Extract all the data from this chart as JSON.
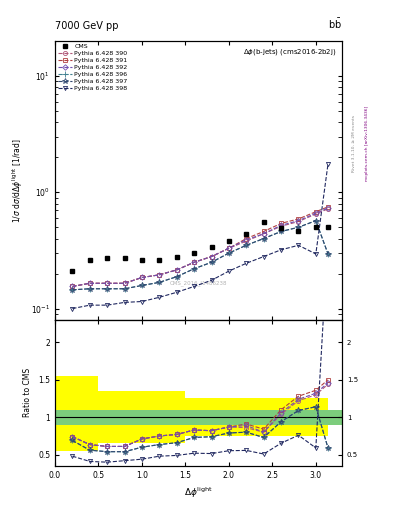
{
  "title_top": "7000 GeV pp",
  "title_right": "b$\\bar{\\mathrm{b}}$",
  "subtitle": "$\\Delta\\phi$(b-jets) (cms2016-2b2j)",
  "watermark": "CMS_2016_I1486238",
  "rivet_label": "Rivet 3.1.10, ≥ 2M events",
  "mcplots_label": "mcplots.cern.ch [arXiv:1306.3436]",
  "ylabel_main": "1/σ dσ/dΔφ$^{\\rm light}$ [1/rad]",
  "ylabel_ratio": "Ratio to CMS",
  "xlabel": "$\\Delta\\phi^{\\rm light}$",
  "xlim": [
    0,
    3.3
  ],
  "ylim_main": [
    0.08,
    20
  ],
  "ylim_ratio": [
    0.35,
    2.3
  ],
  "cms_x": [
    0.2,
    0.4,
    0.6,
    0.8,
    1.0,
    1.2,
    1.4,
    1.6,
    1.8,
    2.0,
    2.2,
    2.4,
    2.6,
    2.8,
    3.0,
    3.14
  ],
  "cms_y": [
    0.21,
    0.26,
    0.27,
    0.27,
    0.26,
    0.26,
    0.28,
    0.3,
    0.34,
    0.38,
    0.44,
    0.55,
    0.49,
    0.46,
    0.5,
    0.5
  ],
  "py390_x": [
    0.2,
    0.4,
    0.6,
    0.8,
    1.0,
    1.2,
    1.4,
    1.6,
    1.8,
    2.0,
    2.2,
    2.4,
    2.6,
    2.8,
    3.0,
    3.14
  ],
  "py390_y": [
    0.155,
    0.165,
    0.165,
    0.165,
    0.185,
    0.195,
    0.215,
    0.25,
    0.28,
    0.33,
    0.38,
    0.44,
    0.51,
    0.56,
    0.65,
    0.72
  ],
  "py391_x": [
    0.2,
    0.4,
    0.6,
    0.8,
    1.0,
    1.2,
    1.4,
    1.6,
    1.8,
    2.0,
    2.2,
    2.4,
    2.6,
    2.8,
    3.0,
    3.14
  ],
  "py391_y": [
    0.155,
    0.165,
    0.165,
    0.165,
    0.185,
    0.195,
    0.215,
    0.25,
    0.28,
    0.33,
    0.4,
    0.46,
    0.54,
    0.59,
    0.68,
    0.75
  ],
  "py392_x": [
    0.2,
    0.4,
    0.6,
    0.8,
    1.0,
    1.2,
    1.4,
    1.6,
    1.8,
    2.0,
    2.2,
    2.4,
    2.6,
    2.8,
    3.0,
    3.14
  ],
  "py392_y": [
    0.155,
    0.165,
    0.165,
    0.165,
    0.185,
    0.195,
    0.215,
    0.25,
    0.28,
    0.33,
    0.39,
    0.44,
    0.52,
    0.57,
    0.66,
    0.73
  ],
  "py396_x": [
    0.2,
    0.4,
    0.6,
    0.8,
    1.0,
    1.2,
    1.4,
    1.6,
    1.8,
    2.0,
    2.2,
    2.4,
    2.6,
    2.8,
    3.0,
    3.14
  ],
  "py396_y": [
    0.145,
    0.148,
    0.148,
    0.148,
    0.158,
    0.168,
    0.188,
    0.22,
    0.25,
    0.3,
    0.35,
    0.4,
    0.46,
    0.5,
    0.57,
    0.295
  ],
  "py397_x": [
    0.2,
    0.4,
    0.6,
    0.8,
    1.0,
    1.2,
    1.4,
    1.6,
    1.8,
    2.0,
    2.2,
    2.4,
    2.6,
    2.8,
    3.0,
    3.14
  ],
  "py397_y": [
    0.145,
    0.148,
    0.148,
    0.148,
    0.158,
    0.168,
    0.188,
    0.22,
    0.25,
    0.3,
    0.35,
    0.4,
    0.46,
    0.5,
    0.57,
    0.295
  ],
  "py398_x": [
    0.2,
    0.4,
    0.6,
    0.8,
    1.0,
    1.2,
    1.4,
    1.6,
    1.8,
    2.0,
    2.2,
    2.4,
    2.6,
    2.8,
    3.0,
    3.14
  ],
  "py398_y": [
    0.1,
    0.107,
    0.107,
    0.113,
    0.115,
    0.125,
    0.138,
    0.155,
    0.175,
    0.21,
    0.245,
    0.28,
    0.32,
    0.35,
    0.295,
    1.75
  ],
  "color_390": "#b05878",
  "color_391": "#b04040",
  "color_392": "#7050b0",
  "color_396": "#408090",
  "color_397": "#304870",
  "color_398": "#202860",
  "ratio_390_y": [
    0.74,
    0.635,
    0.61,
    0.61,
    0.71,
    0.75,
    0.77,
    0.83,
    0.82,
    0.87,
    0.86,
    0.8,
    1.04,
    1.22,
    1.3,
    1.44
  ],
  "ratio_391_y": [
    0.74,
    0.635,
    0.61,
    0.61,
    0.71,
    0.75,
    0.77,
    0.83,
    0.82,
    0.87,
    0.91,
    0.84,
    1.1,
    1.28,
    1.36,
    1.5
  ],
  "ratio_392_y": [
    0.74,
    0.635,
    0.61,
    0.61,
    0.71,
    0.75,
    0.77,
    0.83,
    0.82,
    0.87,
    0.89,
    0.8,
    1.06,
    1.24,
    1.32,
    1.46
  ],
  "ratio_396_y": [
    0.69,
    0.56,
    0.54,
    0.54,
    0.6,
    0.635,
    0.66,
    0.73,
    0.74,
    0.79,
    0.8,
    0.73,
    0.94,
    1.09,
    1.14,
    0.59
  ],
  "ratio_397_y": [
    0.69,
    0.56,
    0.54,
    0.54,
    0.6,
    0.635,
    0.66,
    0.73,
    0.74,
    0.79,
    0.8,
    0.73,
    0.94,
    1.09,
    1.14,
    0.59
  ],
  "ratio_398_y": [
    0.48,
    0.41,
    0.4,
    0.42,
    0.44,
    0.48,
    0.49,
    0.52,
    0.515,
    0.553,
    0.557,
    0.509,
    0.653,
    0.76,
    0.59,
    3.4
  ],
  "green_band_y_low": 0.9,
  "green_band_y_high": 1.1
}
